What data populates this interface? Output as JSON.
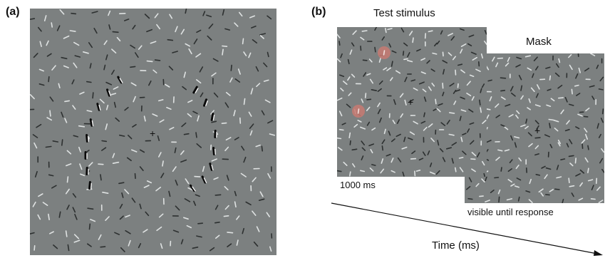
{
  "panels": {
    "a": {
      "label": "(a)"
    },
    "b": {
      "label": "(b)",
      "test_title": "Test stimulus",
      "mask_title": "Mask",
      "test_duration": "1000 ms",
      "mask_duration": "visible until response",
      "time_axis": "Time (ms)"
    }
  },
  "fixation_symbol": "+",
  "colors": {
    "background": "#7c8080",
    "target_highlight": "#c87a72"
  }
}
